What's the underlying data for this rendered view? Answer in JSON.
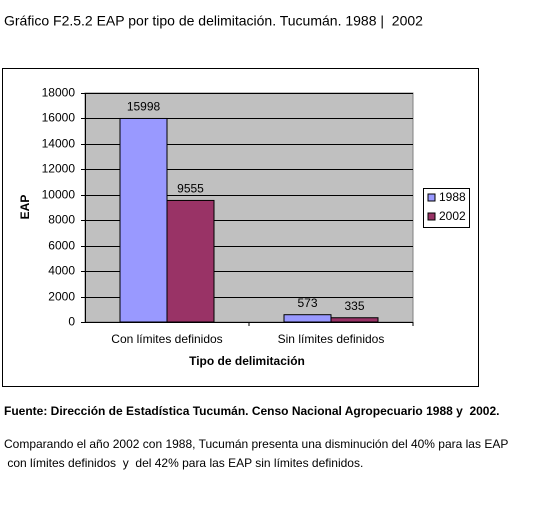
{
  "chart_data": {
    "type": "bar",
    "title": "Gráfico F2.5.2 EAP por tipo de delimitación. Tucumán. 1988 |  2002",
    "xlabel": "Tipo de delimitación",
    "ylabel": "EAP",
    "categories": [
      "Con límites definidos",
      "Sin límites definidos"
    ],
    "series": [
      {
        "name": "1988",
        "color": "#9999ff",
        "values": [
          15998,
          573
        ]
      },
      {
        "name": "2002",
        "color": "#993366",
        "values": [
          9555,
          335
        ]
      }
    ],
    "ylim": [
      0,
      18000
    ],
    "yticks": [
      0,
      2000,
      4000,
      6000,
      8000,
      10000,
      12000,
      14000,
      16000,
      18000
    ],
    "grid": true,
    "legend": "right"
  },
  "source": "Fuente: Dirección de Estadística Tucumán. Censo Nacional Agropecuario 1988 y  2002.",
  "paragraph": {
    "lines": [
      "Comparando el año 2002 con 1988, Tucumán presenta una disminución del 40% para las EAP",
      " con límites definidos  y  del 42% para las EAP sin límites definidos."
    ]
  }
}
